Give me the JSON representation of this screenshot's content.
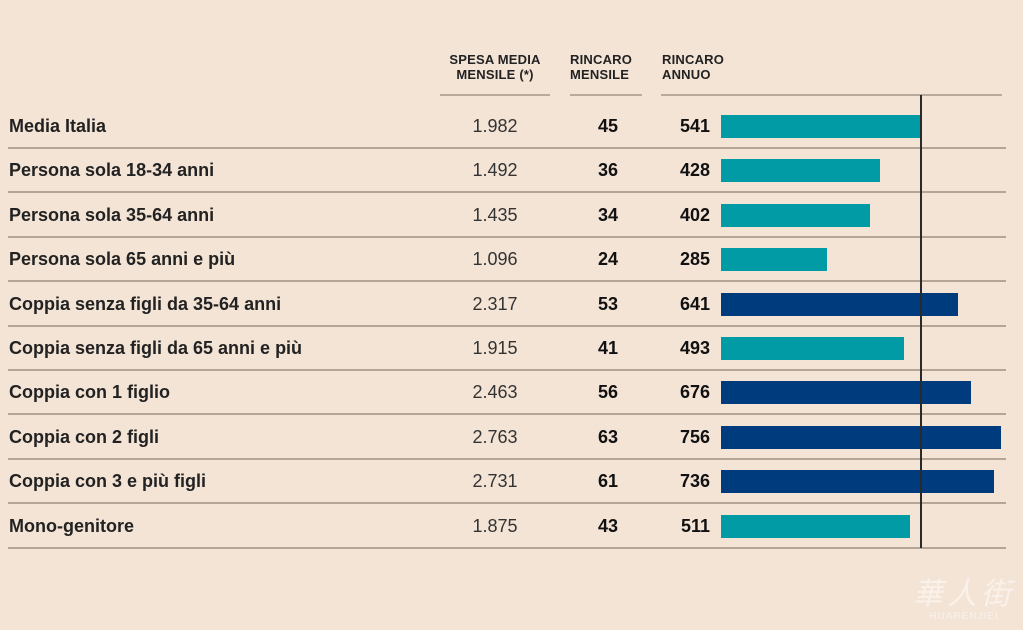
{
  "chart_data": {
    "type": "bar",
    "orientation": "horizontal",
    "title": "",
    "columns": [
      {
        "key": "spesa",
        "label_line1": "SPESA MEDIA",
        "label_line2": "MENSILE (*)"
      },
      {
        "key": "rincaro_mensile",
        "label_line1": "RINCARO",
        "label_line2": "MENSILE"
      },
      {
        "key": "rincaro_annuo",
        "label_line1": "RINCARO",
        "label_line2": "ANNUO"
      }
    ],
    "categories": [
      "Media Italia",
      "Persona sola 18-34 anni",
      "Persona sola 35-64 anni",
      "Persona sola 65 anni e più",
      "Coppia senza figli da 35-64 anni",
      "Coppia senza figli da 65 anni e più",
      "Coppia con 1 figlio",
      "Coppia con 2 figli",
      "Coppia con 3 e più figli",
      "Mono-genitore"
    ],
    "series": [
      {
        "name": "Spesa media mensile (*)",
        "values": [
          "1.982",
          "1.492",
          "1.435",
          "1.096",
          "2.317",
          "1.915",
          "2.463",
          "2.763",
          "2.731",
          "1.875"
        ]
      },
      {
        "name": "Rincaro mensile",
        "values": [
          45,
          36,
          34,
          24,
          53,
          41,
          56,
          63,
          61,
          43
        ]
      },
      {
        "name": "Rincaro annuo",
        "values": [
          541,
          428,
          402,
          285,
          641,
          493,
          676,
          756,
          736,
          511
        ]
      }
    ],
    "bar_series": "Rincaro annuo",
    "bar_colors": [
      "teal",
      "teal",
      "teal",
      "teal",
      "navy",
      "teal",
      "navy",
      "navy",
      "navy",
      "teal"
    ],
    "reference_line": {
      "value": 541,
      "label": "Media Italia"
    },
    "xlim": [
      0,
      756
    ]
  },
  "colors": {
    "background": "#f4e4d6",
    "teal": "#009ba5",
    "navy": "#003b7e",
    "divider": "#b3a597",
    "reference_line": "#2a2a2a"
  },
  "watermark": {
    "zh": "華人街",
    "en": "HUARENJIEI"
  }
}
